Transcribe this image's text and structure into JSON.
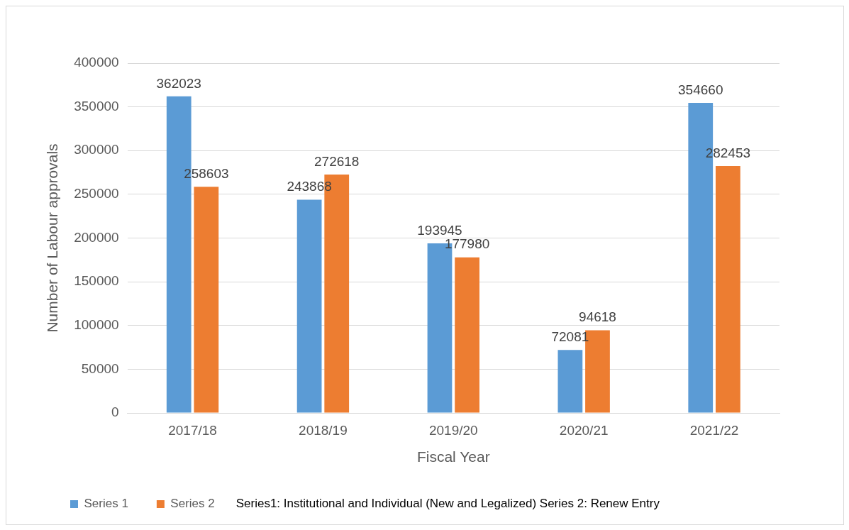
{
  "chart_data": {
    "type": "bar",
    "xlabel": "Fiscal Year",
    "ylabel": "Number of Labour approvals",
    "categories": [
      "2017/18",
      "2018/19",
      "2019/20",
      "2020/21",
      "2021/22"
    ],
    "series": [
      {
        "name": "Series 1",
        "color": "#5b9bd5",
        "values": [
          362023,
          243868,
          193945,
          72081,
          354660
        ]
      },
      {
        "name": "Series 2",
        "color": "#ed7d31",
        "values": [
          258603,
          272618,
          177980,
          94618,
          282453
        ]
      }
    ],
    "ylim": [
      0,
      400000
    ],
    "yticks": [
      0,
      50000,
      100000,
      150000,
      200000,
      250000,
      300000,
      350000,
      400000
    ],
    "grid": "y",
    "legend": "bottom",
    "data_labels": true,
    "annotations": [
      "Series1: Institutional and Individual (New and Legalized) Series 2: Renew Entry"
    ]
  }
}
